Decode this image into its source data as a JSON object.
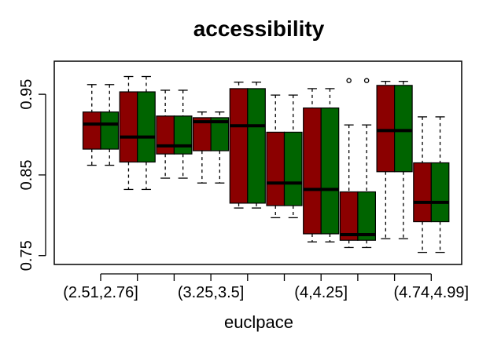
{
  "chart_data": {
    "type": "box",
    "title": "accessibility",
    "xlabel": "euclpace",
    "ylabel": "",
    "ylim": [
      0.74,
      0.99
    ],
    "y_ticks": [
      0.75,
      0.85,
      0.95
    ],
    "y_tick_labels": [
      "0.75",
      "0.85",
      "0.95"
    ],
    "x_tick_labels": [
      "(2.51,2.76]",
      "(3.25,3.5]",
      "(4,4.25]",
      "(4.74,4.99]"
    ],
    "x_tick_label_groups": [
      1,
      4,
      7,
      10
    ],
    "grid": false,
    "colors": {
      "series_a": "#8b0000",
      "series_b": "#006400"
    },
    "groups": [
      {
        "boxes": [
          {
            "whisker_low": 0.862,
            "q1": 0.882,
            "median": 0.913,
            "q3": 0.928,
            "whisker_high": 0.962
          },
          {
            "whisker_low": 0.862,
            "q1": 0.882,
            "median": 0.913,
            "q3": 0.928,
            "whisker_high": 0.962
          }
        ]
      },
      {
        "boxes": [
          {
            "whisker_low": 0.832,
            "q1": 0.866,
            "median": 0.897,
            "q3": 0.953,
            "whisker_high": 0.972
          },
          {
            "whisker_low": 0.832,
            "q1": 0.866,
            "median": 0.897,
            "q3": 0.953,
            "whisker_high": 0.972
          }
        ]
      },
      {
        "boxes": [
          {
            "whisker_low": 0.846,
            "q1": 0.876,
            "median": 0.886,
            "q3": 0.923,
            "whisker_high": 0.955
          },
          {
            "whisker_low": 0.846,
            "q1": 0.876,
            "median": 0.886,
            "q3": 0.923,
            "whisker_high": 0.955
          }
        ]
      },
      {
        "boxes": [
          {
            "whisker_low": 0.84,
            "q1": 0.88,
            "median": 0.916,
            "q3": 0.921,
            "whisker_high": 0.928
          },
          {
            "whisker_low": 0.84,
            "q1": 0.88,
            "median": 0.916,
            "q3": 0.921,
            "whisker_high": 0.928
          }
        ]
      },
      {
        "boxes": [
          {
            "whisker_low": 0.809,
            "q1": 0.815,
            "median": 0.911,
            "q3": 0.957,
            "whisker_high": 0.965
          },
          {
            "whisker_low": 0.809,
            "q1": 0.815,
            "median": 0.911,
            "q3": 0.957,
            "whisker_high": 0.965
          }
        ]
      },
      {
        "boxes": [
          {
            "whisker_low": 0.797,
            "q1": 0.812,
            "median": 0.84,
            "q3": 0.903,
            "whisker_high": 0.949
          },
          {
            "whisker_low": 0.797,
            "q1": 0.812,
            "median": 0.84,
            "q3": 0.903,
            "whisker_high": 0.949
          }
        ]
      },
      {
        "boxes": [
          {
            "whisker_low": 0.767,
            "q1": 0.777,
            "median": 0.832,
            "q3": 0.933,
            "whisker_high": 0.957
          },
          {
            "whisker_low": 0.767,
            "q1": 0.777,
            "median": 0.832,
            "q3": 0.933,
            "whisker_high": 0.957
          }
        ]
      },
      {
        "boxes": [
          {
            "whisker_low": 0.76,
            "q1": 0.769,
            "median": 0.776,
            "q3": 0.829,
            "whisker_high": 0.912,
            "outliers": [
              0.967
            ]
          },
          {
            "whisker_low": 0.76,
            "q1": 0.769,
            "median": 0.776,
            "q3": 0.829,
            "whisker_high": 0.912,
            "outliers": [
              0.967
            ]
          }
        ]
      },
      {
        "boxes": [
          {
            "whisker_low": 0.771,
            "q1": 0.854,
            "median": 0.905,
            "q3": 0.961,
            "whisker_high": 0.966
          },
          {
            "whisker_low": 0.771,
            "q1": 0.854,
            "median": 0.905,
            "q3": 0.961,
            "whisker_high": 0.966
          }
        ]
      },
      {
        "boxes": [
          {
            "whisker_low": 0.754,
            "q1": 0.792,
            "median": 0.816,
            "q3": 0.865,
            "whisker_high": 0.922
          },
          {
            "whisker_low": 0.754,
            "q1": 0.792,
            "median": 0.816,
            "q3": 0.865,
            "whisker_high": 0.922
          }
        ]
      }
    ]
  }
}
